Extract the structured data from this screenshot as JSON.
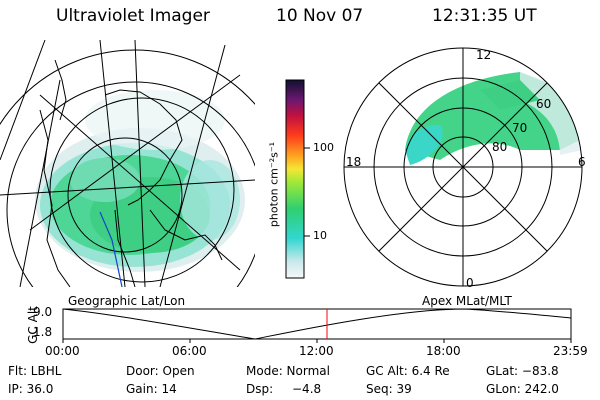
{
  "header": {
    "title": "Ultraviolet Imager",
    "date": "10 Nov 07",
    "time": "12:31:35 UT"
  },
  "colorbar": {
    "unit_label": "photon cm⁻²s⁻¹",
    "ticks": [
      "100",
      "10"
    ]
  },
  "maps": {
    "left_label": "Geographic Lat/Lon",
    "right_label": "Apex MLat/MLT",
    "polar_hours": [
      "12",
      "18",
      "6",
      "0"
    ],
    "polar_lats": [
      "60",
      "70",
      "80"
    ]
  },
  "timeline": {
    "axis_label": "GC Alt",
    "y_ticks": [
      "9.0",
      "1.8"
    ],
    "x_ticks": [
      "00:00",
      "06:00",
      "12:00",
      "18:00",
      "23:59"
    ],
    "marker_time": "12:31:35",
    "marker_color": "#ff0000"
  },
  "status": {
    "row1": {
      "flt": "Flt: LBHL",
      "door": "Door: Open",
      "mode": "Mode: Normal",
      "gcalt": "GC Alt: 6.4 Re",
      "glat": "GLat: −83.8"
    },
    "row2": {
      "ip": "IP: 36.0",
      "gain": "Gain: 14",
      "dsp_label": "Dsp:",
      "dsp_value": "−4.8",
      "seq": "Seq: 39",
      "glon": "GLon: 242.0"
    }
  },
  "colors": {
    "aurora_green": "#33cc66",
    "aurora_cyan": "#33dddd",
    "faint": "#cfe8ea"
  }
}
